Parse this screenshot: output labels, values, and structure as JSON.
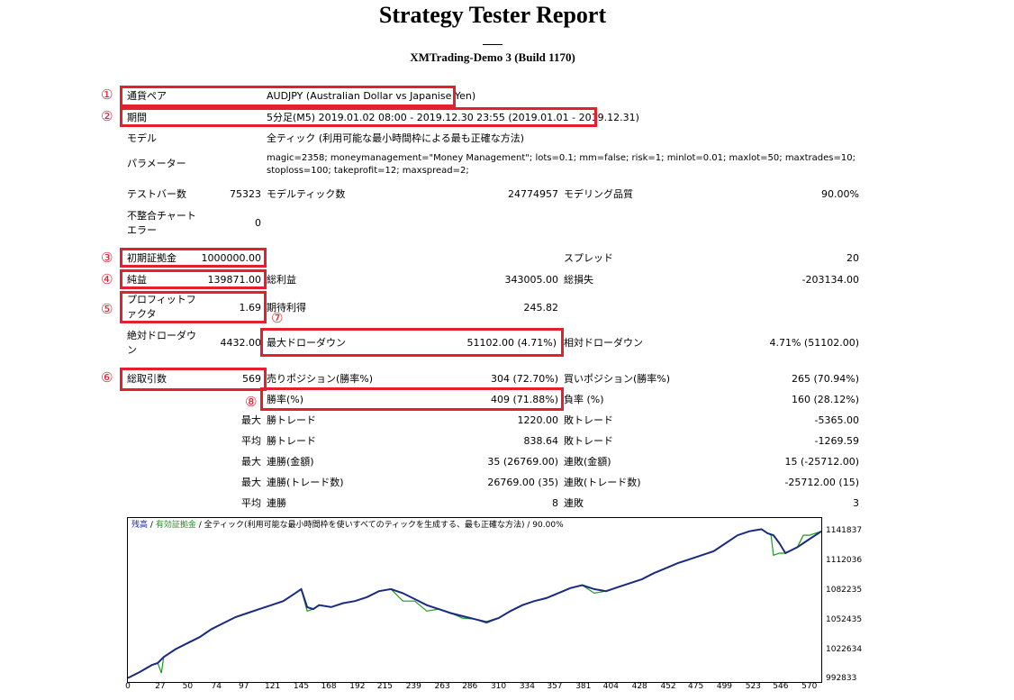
{
  "report": {
    "title": "Strategy Tester Report",
    "subtitle": "XMTrading-Demo 3 (Build 1170)"
  },
  "markers": [
    "①",
    "②",
    "③",
    "④",
    "⑤",
    "⑥",
    "⑦",
    "⑧"
  ],
  "settings": {
    "symbol_label": "通貨ペア",
    "symbol_value": "AUDJPY (Australian Dollar vs Japanise Yen)",
    "period_label": "期間",
    "period_value": "5分足(M5) 2019.01.02 08:00 - 2019.12.30 23:55 (2019.01.01 - 2019.12.31)",
    "model_label": "モデル",
    "model_value": "全ティック (利用可能な最小時間枠による最も正確な方法)",
    "params_label": "パラメーター",
    "params_line1": "magic=2358; moneymanagement=\"Money Management\"; lots=0.1; mm=false; risk=1; minlot=0.01; maxlot=50; maxtrades=10;",
    "params_line2": "stoploss=100; takeprofit=12; maxspread=2;"
  },
  "test": {
    "bars_label": "テストバー数",
    "bars_value": "75323",
    "ticks_label": "モデルティック数",
    "ticks_value": "24774957",
    "quality_label": "モデリング品質",
    "quality_value": "90.00%",
    "mismatch_label_1": "不整合チャート",
    "mismatch_label_2": "エラー",
    "mismatch_value": "0"
  },
  "results": {
    "deposit_label": "初期証拠金",
    "deposit_value": "1000000.00",
    "spread_label": "スプレッド",
    "spread_value": "20",
    "net_label": "純益",
    "net_value": "139871.00",
    "gross_profit_label": "総利益",
    "gross_profit_value": "343005.00",
    "gross_loss_label": "総損失",
    "gross_loss_value": "-203134.00",
    "pf_label_1": "プロフィットフ",
    "pf_label_2": "ァクタ",
    "pf_value": "1.69",
    "expected_label": "期待利得",
    "expected_value": "245.82",
    "abs_dd_label_1": "絶対ドローダウ",
    "abs_dd_label_2": "ン",
    "abs_dd_value": "4432.00",
    "max_dd_label": "最大ドローダウン",
    "max_dd_value": "51102.00 (4.71%)",
    "rel_dd_label": "相対ドローダウン",
    "rel_dd_value": "4.71% (51102.00)",
    "total_label": "総取引数",
    "total_value": "569",
    "short_label": "売りポジション(勝率%)",
    "short_value": "304 (72.70%)",
    "long_label": "買いポジション(勝率%)",
    "long_value": "265 (70.94%)",
    "win_label": "勝率(%)",
    "win_value": "409 (71.88%)",
    "loss_label": "負率 (%)",
    "loss_value": "160 (28.12%)",
    "largest_prefix": "最大",
    "largest_win_label": "勝トレード",
    "largest_win_value": "1220.00",
    "largest_loss_label": "敗トレード",
    "largest_loss_value": "-5365.00",
    "avg_prefix": "平均",
    "avg_win_label": "勝トレード",
    "avg_win_value": "838.64",
    "avg_loss_label": "敗トレード",
    "avg_loss_value": "-1269.59",
    "maxcons_prefix": "最大",
    "maxcons_win_label": "連勝(金額)",
    "maxcons_win_value": "35 (26769.00)",
    "maxcons_loss_label": "連敗(金額)",
    "maxcons_loss_value": "15 (-25712.00)",
    "maxconsprofit_prefix": "最大",
    "maxconsprofit_win_label": "連勝(トレード数)",
    "maxconsprofit_win_value": "26769.00 (35)",
    "maxconsprofit_loss_label": "連敗(トレード数)",
    "maxconsprofit_loss_value": "-25712.00 (15)",
    "avgcons_prefix": "平均",
    "avgcons_win_label": "連勝",
    "avgcons_win_value": "8",
    "avgcons_loss_label": "連敗",
    "avgcons_loss_value": "3"
  },
  "chart_data": {
    "type": "line",
    "legend_balance": "残高",
    "legend_sep": "/",
    "legend_equity": "有効証拠金",
    "legend_rest": "/ 全ティック(利用可能な最小時間枠を使いすべてのティックを生成する、最も正確な方法) / 90.00%",
    "xlim": [
      0,
      580
    ],
    "ylim": [
      992833,
      1148000
    ],
    "x_ticks": [
      0,
      27,
      50,
      74,
      97,
      121,
      145,
      168,
      192,
      215,
      239,
      263,
      286,
      310,
      334,
      357,
      381,
      404,
      428,
      452,
      475,
      499,
      523,
      546,
      570
    ],
    "y_ticks": [
      992833,
      1022634,
      1052435,
      1082235,
      1112036,
      1141837
    ],
    "y_tick_labels": [
      "992833",
      "1022634",
      "1052435",
      "1082235",
      "1112036",
      "1141837"
    ],
    "colors": {
      "balance": "#1a2a80",
      "equity": "#1f9a1f"
    },
    "balance": {
      "x": [
        0,
        10,
        20,
        25,
        30,
        40,
        50,
        60,
        70,
        80,
        90,
        100,
        110,
        120,
        130,
        140,
        145,
        150,
        155,
        160,
        170,
        180,
        190,
        200,
        210,
        220,
        230,
        240,
        250,
        260,
        270,
        280,
        290,
        300,
        310,
        320,
        330,
        340,
        350,
        360,
        370,
        380,
        390,
        400,
        410,
        420,
        430,
        440,
        450,
        460,
        470,
        480,
        490,
        500,
        510,
        520,
        525,
        530,
        535,
        540,
        545,
        550,
        560,
        570,
        580
      ],
      "y": [
        995000,
        1001000,
        1008000,
        1010000,
        1016000,
        1024000,
        1030000,
        1036000,
        1044000,
        1050000,
        1056000,
        1060000,
        1064000,
        1068000,
        1072000,
        1080000,
        1084000,
        1066000,
        1064000,
        1068000,
        1066000,
        1070000,
        1072000,
        1076000,
        1082000,
        1084000,
        1080000,
        1074000,
        1068000,
        1064000,
        1060000,
        1057000,
        1054000,
        1051000,
        1055000,
        1062000,
        1068000,
        1072000,
        1075000,
        1080000,
        1085000,
        1088000,
        1084000,
        1082000,
        1086000,
        1090000,
        1094000,
        1100000,
        1105000,
        1110000,
        1114000,
        1118000,
        1122000,
        1130000,
        1138000,
        1142000,
        1143000,
        1144000,
        1140000,
        1138000,
        1130000,
        1120000,
        1126000,
        1134000,
        1141837
      ]
    },
    "equity": {
      "x": [
        0,
        10,
        20,
        25,
        28,
        30,
        40,
        50,
        60,
        70,
        80,
        90,
        100,
        110,
        120,
        130,
        140,
        145,
        150,
        155,
        160,
        170,
        180,
        190,
        200,
        210,
        220,
        230,
        240,
        250,
        260,
        270,
        280,
        290,
        300,
        310,
        320,
        330,
        340,
        350,
        360,
        370,
        380,
        390,
        400,
        410,
        420,
        430,
        440,
        450,
        460,
        470,
        480,
        490,
        500,
        510,
        520,
        525,
        530,
        535,
        538,
        540,
        545,
        550,
        560,
        565,
        570,
        580
      ],
      "y": [
        995000,
        1001000,
        1008000,
        1010000,
        1000000,
        1016000,
        1024000,
        1030000,
        1036000,
        1044000,
        1050000,
        1056000,
        1060000,
        1064000,
        1068000,
        1072000,
        1080000,
        1084000,
        1062000,
        1064000,
        1068000,
        1066000,
        1070000,
        1072000,
        1076000,
        1082000,
        1084000,
        1072000,
        1072000,
        1062000,
        1064000,
        1060000,
        1055000,
        1054000,
        1050000,
        1055000,
        1062000,
        1068000,
        1072000,
        1075000,
        1080000,
        1085000,
        1088000,
        1080000,
        1082000,
        1086000,
        1090000,
        1094000,
        1100000,
        1105000,
        1110000,
        1114000,
        1118000,
        1122000,
        1130000,
        1138000,
        1142000,
        1143000,
        1144000,
        1140000,
        1138000,
        1118000,
        1120000,
        1120000,
        1126000,
        1138000,
        1138000,
        1141837
      ]
    }
  }
}
